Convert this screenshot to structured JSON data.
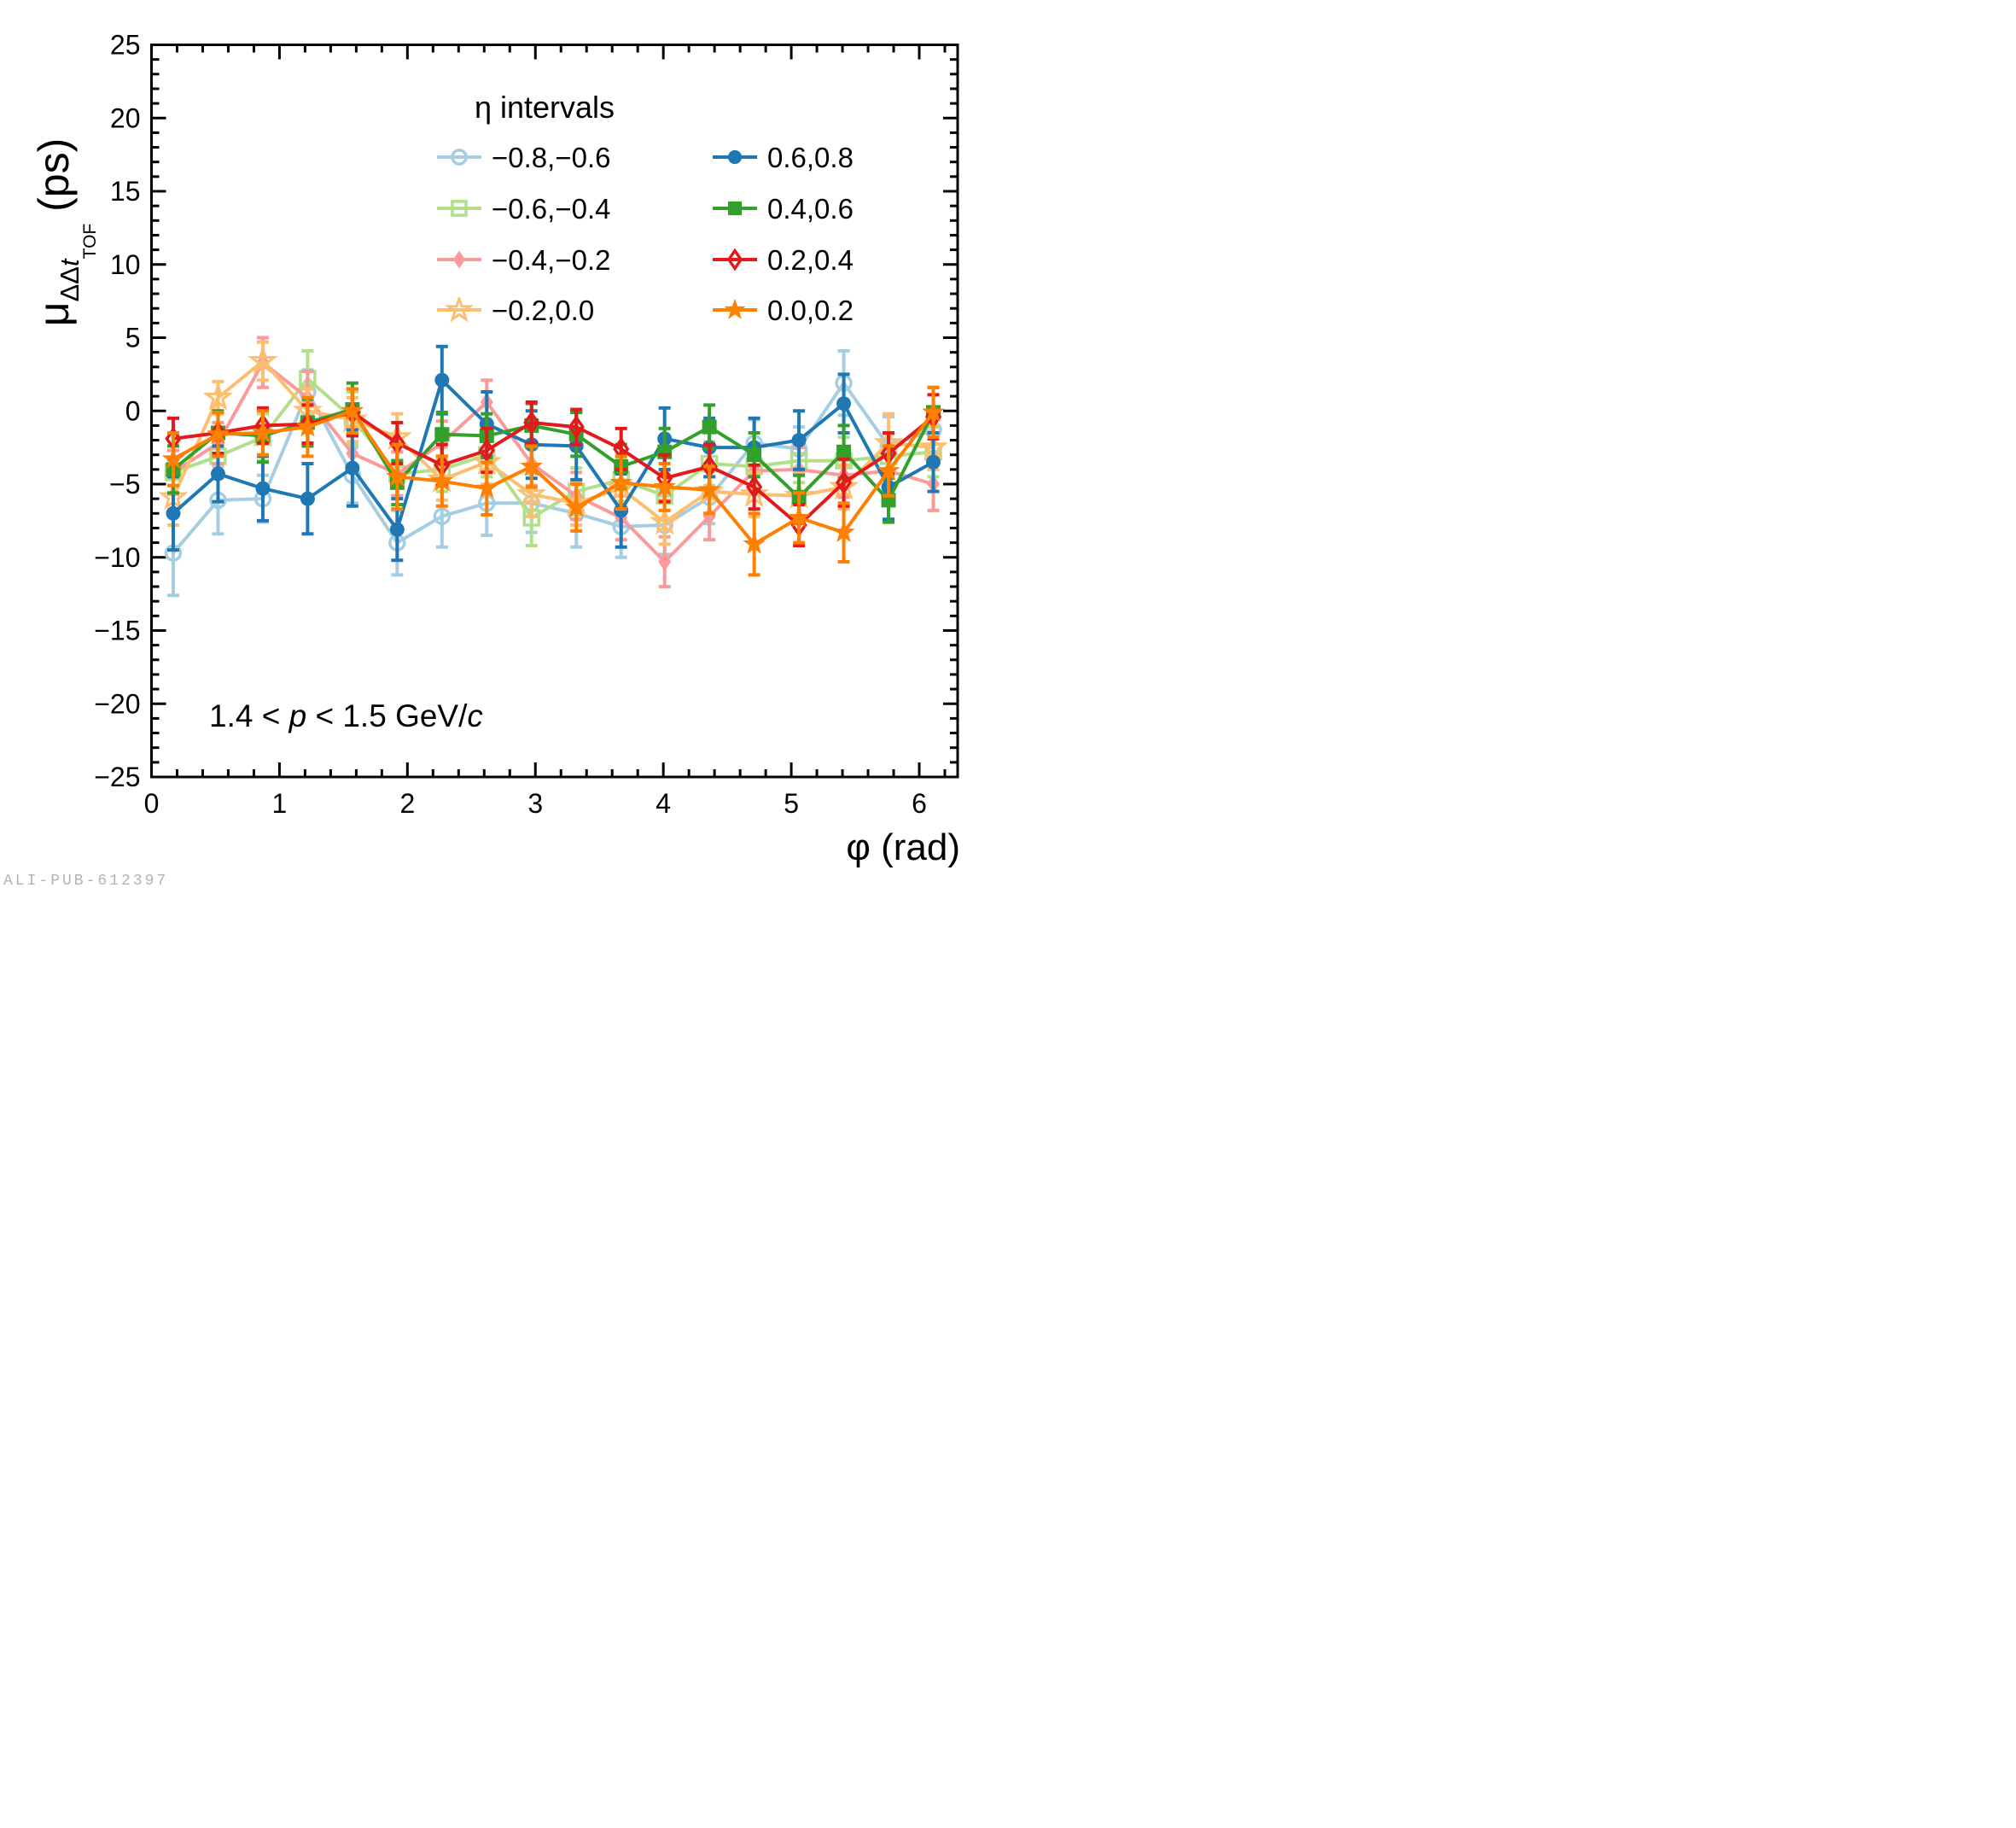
{
  "watermark": {
    "text": "ALI-PUB-612397"
  },
  "ylabel": {
    "mu": "μ",
    "sub_dd": "ΔΔ",
    "sub_t": "t",
    "subsub": "TOF",
    "units": " (ps)"
  },
  "xlabel": {
    "phi": "φ",
    "rest": " (rad)"
  },
  "annotation": {
    "pre": "1.4 < ",
    "p": "p",
    "mid": " < 1.5 GeV/",
    "c": "c"
  },
  "chart_data": {
    "type": "line",
    "title": "",
    "xlabel": "φ (rad)",
    "ylabel": "μ_ΔΔt_TOF (ps)",
    "legend_title": "η intervals",
    "legend_position": "top-center, two columns",
    "grid": false,
    "xlim": [
      0,
      6.3
    ],
    "ylim": [
      -25,
      25
    ],
    "x_major_ticks": [
      0,
      1,
      2,
      3,
      4,
      5,
      6
    ],
    "x_minor_step": 0.2,
    "y_major_step": 5,
    "y_minor_step": 1,
    "x": [
      0.17,
      0.52,
      0.87,
      1.22,
      1.57,
      1.92,
      2.27,
      2.62,
      2.97,
      3.32,
      3.67,
      4.01,
      4.36,
      4.71,
      5.06,
      5.41,
      5.76,
      6.11
    ],
    "series": [
      {
        "name": "eta-m08-m06",
        "label": "−0.8,−0.6",
        "color": "#a6cee3",
        "marker": "open-circle",
        "legend_column": "left",
        "legend_row": 0,
        "values": [
          -9.7,
          -6.1,
          -6.0,
          1.3,
          -4.4,
          -9.0,
          -7.2,
          -6.3,
          -6.3,
          -7.0,
          -7.9,
          -7.8,
          -5.9,
          -2.2,
          -2.6,
          1.9,
          -2.4,
          -1.3
        ],
        "errors": [
          2.9,
          2.3,
          1.6,
          1.5,
          1.9,
          2.2,
          2.1,
          2.2,
          2.0,
          2.3,
          2.1,
          2.0,
          1.8,
          1.6,
          1.5,
          2.2,
          2.0,
          1.5
        ]
      },
      {
        "name": "eta-m06-m04",
        "label": "−0.6,−0.4",
        "color": "#b2df8a",
        "marker": "open-square",
        "legend_column": "left",
        "legend_row": 1,
        "values": [
          -4.2,
          -3.1,
          -1.8,
          2.2,
          -0.5,
          -4.3,
          -4.0,
          -3.0,
          -7.3,
          -5.5,
          -4.7,
          -5.8,
          -3.6,
          -3.8,
          -3.4,
          -3.4,
          -3.1,
          -2.8
        ],
        "errors": [
          1.5,
          1.5,
          1.6,
          1.9,
          1.8,
          1.5,
          1.5,
          1.5,
          1.9,
          1.6,
          1.5,
          1.6,
          1.5,
          1.5,
          1.5,
          1.6,
          1.5,
          1.7
        ]
      },
      {
        "name": "eta-m04-m02",
        "label": "−0.4,−0.2",
        "color": "#fb9a99",
        "marker": "filled-diamond",
        "legend_column": "left",
        "legend_row": 2,
        "values": [
          -4.2,
          -2.2,
          3.3,
          0.9,
          -2.9,
          -4.3,
          -2.2,
          0.6,
          -3.6,
          -5.8,
          -7.3,
          -10.3,
          -7.2,
          -4.1,
          -4.0,
          -4.4,
          -4.1,
          -5.0
        ],
        "errors": [
          1.5,
          1.4,
          1.7,
          1.8,
          1.3,
          1.5,
          1.5,
          1.5,
          1.5,
          1.6,
          1.5,
          1.7,
          1.6,
          1.5,
          1.5,
          1.5,
          1.5,
          1.8
        ]
      },
      {
        "name": "eta-m02-00",
        "label": "−0.2,0.0",
        "color": "#fdbf6f",
        "marker": "open-star",
        "legend_column": "left",
        "legend_row": 3,
        "values": [
          -5.9,
          0.9,
          3.4,
          0.0,
          -0.6,
          -1.8,
          -4.7,
          -3.5,
          -5.7,
          -6.3,
          -5.3,
          -7.6,
          -5.5,
          -5.7,
          -5.8,
          -5.2,
          -2.2,
          -2.5
        ],
        "errors": [
          1.9,
          1.1,
          1.3,
          1.5,
          1.5,
          1.6,
          1.4,
          1.5,
          1.5,
          1.5,
          1.5,
          1.5,
          1.5,
          1.5,
          1.5,
          1.5,
          2.0,
          1.5
        ]
      },
      {
        "name": "eta-06-08",
        "label": "0.6,0.8",
        "color": "#1f78b4",
        "marker": "filled-circle",
        "legend_column": "right",
        "legend_row": 0,
        "values": [
          -7.0,
          -4.3,
          -5.3,
          -6.0,
          -3.9,
          -8.1,
          2.1,
          -0.9,
          -2.3,
          -2.4,
          -6.8,
          -1.9,
          -2.5,
          -2.5,
          -2.0,
          0.5,
          -5.2,
          -3.5
        ],
        "errors": [
          2.5,
          1.9,
          2.2,
          2.4,
          2.6,
          2.1,
          2.3,
          2.2,
          2.3,
          2.3,
          2.5,
          2.1,
          2.0,
          2.0,
          2.0,
          2.0,
          2.2,
          2.0
        ]
      },
      {
        "name": "eta-04-06",
        "label": "0.4,0.6",
        "color": "#33a02c",
        "marker": "filled-square",
        "legend_column": "right",
        "legend_row": 1,
        "values": [
          -4.0,
          -1.5,
          -1.7,
          -0.8,
          0.1,
          -4.9,
          -1.6,
          -1.7,
          -1.0,
          -1.6,
          -3.8,
          -2.8,
          -1.1,
          -3.0,
          -5.9,
          -2.8,
          -6.1,
          -0.1
        ],
        "errors": [
          1.6,
          1.5,
          1.8,
          1.6,
          1.8,
          1.5,
          1.5,
          1.5,
          1.5,
          1.5,
          1.5,
          1.6,
          1.5,
          1.5,
          1.5,
          1.8,
          1.5,
          1.7
        ]
      },
      {
        "name": "eta-02-04",
        "label": "0.2,0.4",
        "color": "#e31a1c",
        "marker": "open-diamond",
        "legend_column": "right",
        "legend_row": 2,
        "values": [
          -1.9,
          -1.5,
          -1.0,
          -0.9,
          -0.1,
          -2.2,
          -3.7,
          -2.7,
          -0.8,
          -1.1,
          -2.6,
          -4.6,
          -3.8,
          -5.2,
          -7.8,
          -4.9,
          -2.9,
          -0.4
        ],
        "errors": [
          1.4,
          1.4,
          1.2,
          1.3,
          1.6,
          1.4,
          1.4,
          1.5,
          1.4,
          1.2,
          1.4,
          1.6,
          1.5,
          1.5,
          1.4,
          1.6,
          1.4,
          1.5
        ]
      },
      {
        "name": "eta-00-02",
        "label": "0.0,0.2",
        "color": "#ff7f00",
        "marker": "filled-star",
        "legend_column": "right",
        "legend_row": 3,
        "values": [
          -3.3,
          -1.6,
          -1.5,
          -1.1,
          0.0,
          -4.5,
          -4.8,
          -5.3,
          -3.8,
          -6.6,
          -4.9,
          -5.2,
          -5.4,
          -9.1,
          -7.3,
          -8.3,
          -4.1,
          -0.1
        ],
        "errors": [
          1.8,
          1.5,
          1.5,
          2.0,
          1.5,
          2.2,
          1.7,
          1.8,
          1.4,
          1.6,
          1.8,
          1.6,
          1.6,
          2.1,
          1.7,
          2.0,
          1.7,
          1.7
        ]
      }
    ]
  }
}
